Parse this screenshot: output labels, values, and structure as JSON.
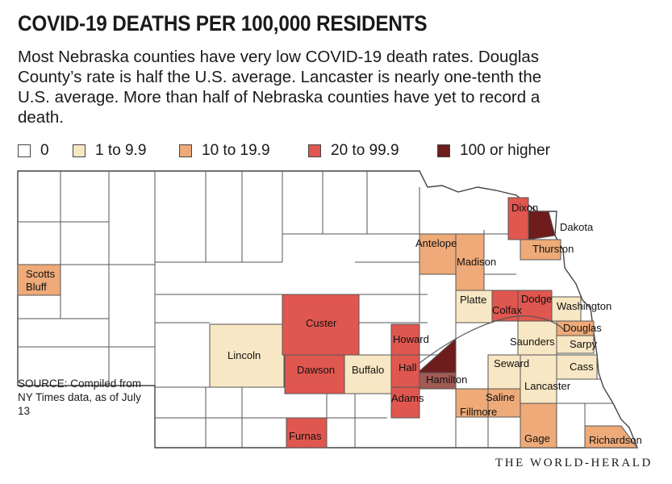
{
  "title": "COVID-19 DEATHS PER 100,000 RESIDENTS",
  "subtitle": "Most Nebraska counties have very low COVID-19 death rates. Douglas County’s rate is half the U.S. average. Lancaster is nearly one-tenth the U.S. average. More than half of Nebraska counties have yet to record a death.",
  "legend": [
    {
      "label": "0",
      "color": "#ffffff"
    },
    {
      "label": "1 to 9.9",
      "color": "#f8e7c4"
    },
    {
      "label": "10 to 19.9",
      "color": "#eeaa78"
    },
    {
      "label": "20 to 99.9",
      "color": "#e0574f"
    },
    {
      "label": "100 or higher",
      "color": "#6e1c1c"
    }
  ],
  "counties": [
    {
      "name": "Scotts Bluff",
      "lines": [
        "Scotts",
        "Bluff"
      ],
      "category": "10 to 19.9"
    },
    {
      "name": "Lincoln",
      "lines": [
        "Lincoln"
      ],
      "category": "1 to 9.9"
    },
    {
      "name": "Custer",
      "lines": [
        "Custer"
      ],
      "category": "20 to 99.9"
    },
    {
      "name": "Dawson",
      "lines": [
        "Dawson"
      ],
      "category": "20 to 99.9"
    },
    {
      "name": "Buffalo",
      "lines": [
        "Buffalo"
      ],
      "category": "1 to 9.9"
    },
    {
      "name": "Howard",
      "lines": [
        "Howard"
      ],
      "category": "20 to 99.9"
    },
    {
      "name": "Hall",
      "lines": [
        "Hall"
      ],
      "category": "20 to 99.9"
    },
    {
      "name": "Adams",
      "lines": [
        "Adams"
      ],
      "category": "20 to 99.9"
    },
    {
      "name": "Hamilton",
      "lines": [
        "Hamilton"
      ],
      "category": "100 or higher"
    },
    {
      "name": "Furnas",
      "lines": [
        "Furnas"
      ],
      "category": "20 to 99.9"
    },
    {
      "name": "Antelope",
      "lines": [
        "Antelope"
      ],
      "category": "10 to 19.9"
    },
    {
      "name": "Madison",
      "lines": [
        "Madison"
      ],
      "category": "10 to 19.9"
    },
    {
      "name": "Platte",
      "lines": [
        "Platte"
      ],
      "category": "1 to 9.9"
    },
    {
      "name": "Colfax",
      "lines": [
        "Colfax"
      ],
      "category": "20 to 99.9"
    },
    {
      "name": "Dodge",
      "lines": [
        "Dodge"
      ],
      "category": "20 to 99.9"
    },
    {
      "name": "Dixon",
      "lines": [
        "Dixon"
      ],
      "category": "20 to 99.9"
    },
    {
      "name": "Dakota",
      "lines": [
        "Dakota"
      ],
      "category": "100 or higher"
    },
    {
      "name": "Thurston",
      "lines": [
        "Thurston"
      ],
      "category": "10 to 19.9"
    },
    {
      "name": "Washington",
      "lines": [
        "Washington"
      ],
      "category": "1 to 9.9"
    },
    {
      "name": "Douglas",
      "lines": [
        "Douglas"
      ],
      "category": "10 to 19.9"
    },
    {
      "name": "Sarpy",
      "lines": [
        "Sarpy"
      ],
      "category": "10 to 19.9"
    },
    {
      "name": "Saunders",
      "lines": [
        "Saunders"
      ],
      "category": "1 to 9.9"
    },
    {
      "name": "Cass",
      "lines": [
        "Cass"
      ],
      "category": "1 to 9.9"
    },
    {
      "name": "Seward",
      "lines": [
        "Seward"
      ],
      "category": "1 to 9.9"
    },
    {
      "name": "Lancaster",
      "lines": [
        "Lancaster"
      ],
      "category": "1 to 9.9"
    },
    {
      "name": "Saline",
      "lines": [
        "Saline"
      ],
      "category": "10 to 19.9"
    },
    {
      "name": "Fillmore",
      "lines": [
        "Fillmore"
      ],
      "category": "10 to 19.9"
    },
    {
      "name": "Gage",
      "lines": [
        "Gage"
      ],
      "category": "10 to 19.9"
    },
    {
      "name": "Richardson",
      "lines": [
        "Richardson"
      ],
      "category": "10 to 19.9"
    }
  ],
  "source": "SOURCE: Compiled from NY Times data, as of July 13",
  "brand": "THE WORLD-HERALD"
}
